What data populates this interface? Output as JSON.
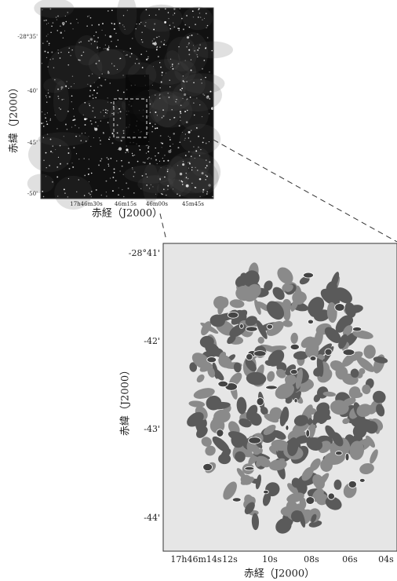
{
  "top_panel": {
    "y_label": "赤緯（J2000）",
    "x_label": "赤経（J2000）",
    "y_ticks": [
      "-28°35'",
      "-40'",
      "-45'",
      "-50'"
    ],
    "x_ticks": [
      "17h46m30s",
      "46m15s",
      "46m00s",
      "45m45s"
    ]
  },
  "bottom_panel": {
    "y_label": "赤緯（J2000）",
    "x_label": "赤経（J2000）",
    "y_ticks": [
      "-28°41'",
      "-42'",
      "-43'",
      "-44'"
    ],
    "x_ticks": [
      "17h46m14s",
      "12s",
      "10s",
      "08s",
      "06s",
      "04s"
    ]
  }
}
